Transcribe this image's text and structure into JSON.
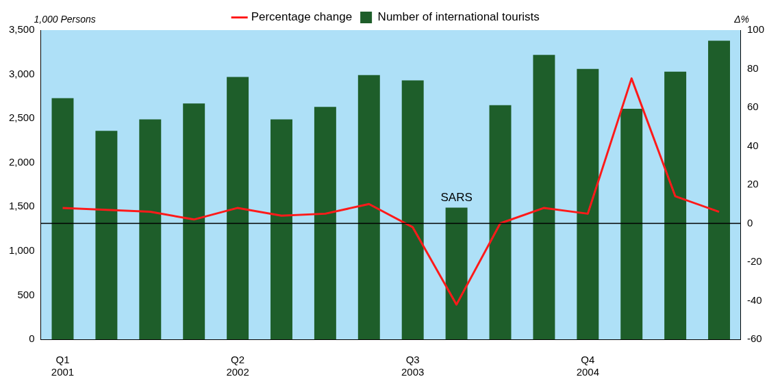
{
  "chart_data": {
    "type": "bar",
    "categories": [
      "Q1 2001",
      null,
      null,
      null,
      "Q2 2002",
      null,
      null,
      null,
      "Q3 2003",
      null,
      null,
      null,
      "Q4 2004",
      null,
      null,
      null
    ],
    "series": [
      {
        "name": "Number of international tourists",
        "color": "#1e5e2a",
        "values": [
          2730,
          2360,
          2490,
          2670,
          2970,
          2490,
          2630,
          2990,
          2930,
          1490,
          2650,
          3220,
          3060,
          2610,
          3030,
          3380
        ]
      },
      {
        "name": "Percentage change",
        "type": "line",
        "axis": "y2",
        "color": "#ff1a1a",
        "marker": "none",
        "values": [
          8,
          7,
          6,
          2,
          8,
          4,
          5,
          10,
          -2,
          -42,
          0,
          8,
          5,
          75,
          14,
          6
        ]
      }
    ],
    "ylabel": "1,000 Persons",
    "y2label": "Δ%",
    "ylim": [
      0,
      3500
    ],
    "yticks": [
      0,
      500,
      {
        "value": 1000,
        "label": "1,000"
      },
      {
        "value": 1500,
        "label": "1,500"
      },
      {
        "value": 2000,
        "label": "2,000"
      },
      {
        "value": 2500,
        "label": "2,500"
      },
      {
        "value": 3000,
        "label": "3,000"
      },
      {
        "value": 3500,
        "label": "3,500"
      }
    ],
    "y2lim": [
      -60,
      100
    ],
    "y2ticks": [
      -60,
      -40,
      -20,
      0,
      20,
      40,
      60,
      80,
      100
    ],
    "ref_lines": [
      {
        "axis": "y2",
        "value": 0,
        "color": "#000000"
      }
    ],
    "annotations": [
      {
        "text": "SARS",
        "y": 1490
      }
    ],
    "grid": false,
    "legend": "top",
    "line_style": "solid"
  }
}
